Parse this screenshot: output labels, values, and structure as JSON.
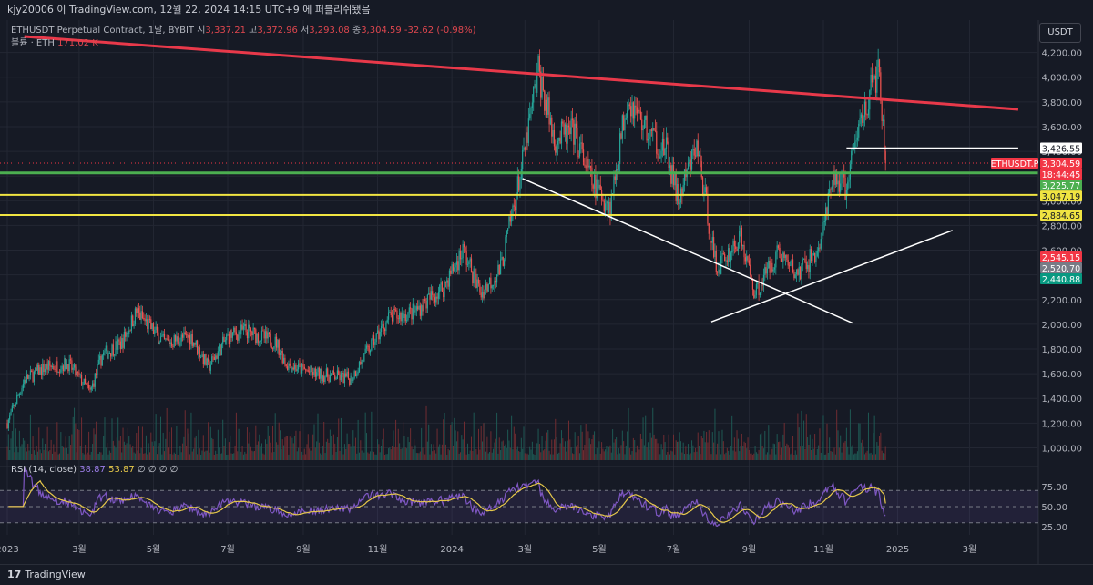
{
  "header": {
    "caption": "kjy20006 이 TradingView.com, 12월 22, 2024 14:15 UTC+9 에 퍼블리쉬됐음"
  },
  "legend": {
    "symbol": "ETHUSDT Perpetual Contract, 1날, BYBIT",
    "open_label": "시",
    "open": "3,337.21",
    "high_label": "고",
    "high": "3,372.96",
    "low_label": "저",
    "low": "3,293.08",
    "close_label": "종",
    "close": "3,304.59",
    "change": "-32.62 (-0.98%)",
    "volume_label": "볼륨 · ETH",
    "volume": "171.02 K"
  },
  "rsi_legend": {
    "label": "RSI (14, close)",
    "rsi": "38.87",
    "ma": "53.87",
    "extras": "∅ ∅ ∅ ∅"
  },
  "currency": "USDT",
  "footer": {
    "brand": "TradingView",
    "logo": "17"
  },
  "colors": {
    "background": "#161a25",
    "up": "#26a69a",
    "down": "#ef5350",
    "trend_red": "#e8394a",
    "green_line": "#4caf50",
    "yellow_line": "#f0e442",
    "white_line": "#ffffff",
    "rsi_purple": "#7e57c2",
    "rsi_yellow": "#e6c84a"
  },
  "chart_data": {
    "type": "candlestick",
    "timeframe": "1D",
    "y_axis_ticks": [
      1000,
      1200,
      1400,
      1600,
      1800,
      2000,
      2200,
      2400,
      2600,
      2800,
      3000,
      3200,
      3400,
      3600,
      3800,
      4000,
      4200
    ],
    "ylim": [
      900,
      4330
    ],
    "x_axis_ticks": [
      "2023",
      "3월",
      "5월",
      "7월",
      "9월",
      "11월",
      "2024",
      "3월",
      "5월",
      "7월",
      "9월",
      "11월",
      "2025",
      "3월"
    ],
    "x_tick_dates": [
      "2023-01-01",
      "2023-03-01",
      "2023-05-01",
      "2023-07-01",
      "2023-09-01",
      "2023-11-01",
      "2024-01-01",
      "2024-03-01",
      "2024-05-01",
      "2024-07-01",
      "2024-09-01",
      "2024-11-01",
      "2025-01-01",
      "2025-03-01"
    ],
    "price_path": [
      [
        "2023-01-01",
        1200
      ],
      [
        "2023-01-15",
        1550
      ],
      [
        "2023-02-01",
        1650
      ],
      [
        "2023-02-20",
        1680
      ],
      [
        "2023-03-10",
        1450
      ],
      [
        "2023-03-20",
        1750
      ],
      [
        "2023-04-05",
        1850
      ],
      [
        "2023-04-17",
        2100
      ],
      [
        "2023-05-10",
        1850
      ],
      [
        "2023-06-01",
        1900
      ],
      [
        "2023-06-15",
        1650
      ],
      [
        "2023-07-01",
        1900
      ],
      [
        "2023-07-15",
        1950
      ],
      [
        "2023-08-10",
        1850
      ],
      [
        "2023-08-18",
        1680
      ],
      [
        "2023-09-10",
        1600
      ],
      [
        "2023-10-10",
        1560
      ],
      [
        "2023-10-25",
        1800
      ],
      [
        "2023-11-10",
        2050
      ],
      [
        "2023-12-01",
        2100
      ],
      [
        "2023-12-25",
        2300
      ],
      [
        "2024-01-10",
        2600
      ],
      [
        "2024-01-25",
        2250
      ],
      [
        "2024-02-10",
        2450
      ],
      [
        "2024-02-28",
        3300
      ],
      [
        "2024-03-12",
        4050
      ],
      [
        "2024-03-25",
        3500
      ],
      [
        "2024-04-10",
        3550
      ],
      [
        "2024-04-25",
        3150
      ],
      [
        "2024-05-10",
        2950
      ],
      [
        "2024-05-24",
        3850
      ],
      [
        "2024-06-10",
        3550
      ],
      [
        "2024-06-25",
        3400
      ],
      [
        "2024-07-05",
        3000
      ],
      [
        "2024-07-20",
        3450
      ],
      [
        "2024-08-05",
        2450
      ],
      [
        "2024-08-25",
        2700
      ],
      [
        "2024-09-06",
        2250
      ],
      [
        "2024-09-25",
        2600
      ],
      [
        "2024-10-10",
        2400
      ],
      [
        "2024-10-28",
        2600
      ],
      [
        "2024-11-10",
        3200
      ],
      [
        "2024-11-20",
        3100
      ],
      [
        "2024-12-01",
        3650
      ],
      [
        "2024-12-16",
        4050
      ],
      [
        "2024-12-22",
        3304.59
      ]
    ],
    "price_labels": [
      {
        "text": "3,426.55",
        "value": 3426.55,
        "color": "#ffffff",
        "text_color": "#131722"
      },
      {
        "text": "ETHUSDT.P",
        "value": 3304.59,
        "color": "#f23645",
        "text_color": "#ffffff"
      },
      {
        "text": "3,304.59",
        "value": 3304.59,
        "color": "#f23645",
        "text_color": "#ffffff"
      },
      {
        "text": "18:44:45",
        "value": 3215,
        "color": "#f23645",
        "text_color": "#ffffff"
      },
      {
        "text": "3,225.77",
        "value": 3225.77,
        "color": "#4caf50",
        "text_color": "#ffffff"
      },
      {
        "text": "3,047.19",
        "value": 3047.19,
        "color": "#f0e442",
        "text_color": "#131722"
      },
      {
        "text": "2,884.65",
        "value": 2884.65,
        "color": "#f0e442",
        "text_color": "#131722"
      },
      {
        "text": "2,545.15",
        "value": 2545.15,
        "color": "#f23645",
        "text_color": "#ffffff"
      },
      {
        "text": "2,520.70",
        "value": 2520.7,
        "color": "#787b86",
        "text_color": "#ffffff"
      },
      {
        "text": "2,440.88",
        "value": 2440.88,
        "color": "#089981",
        "text_color": "#ffffff"
      }
    ],
    "horizontal_lines": [
      {
        "value": 3225.77,
        "color": "#4caf50"
      },
      {
        "value": 3047.19,
        "color": "#f0e442"
      },
      {
        "value": 2884.65,
        "color": "#f0e442"
      }
    ],
    "trendlines": [
      {
        "from": [
          "2023-01-15",
          4330
        ],
        "to": [
          "2025-04-10",
          3740
        ],
        "color": "#e8394a"
      },
      {
        "from": [
          "2024-02-28",
          3180
        ],
        "to": [
          "2024-11-25",
          2010
        ],
        "color": "#ffffff"
      },
      {
        "from": [
          "2024-08-01",
          2020
        ],
        "to": [
          "2025-02-15",
          2760
        ],
        "color": "#ffffff"
      },
      {
        "from": [
          "2024-11-20",
          3426.55
        ],
        "to": [
          "2025-04-10",
          3426.55
        ],
        "color": "#ffffff"
      }
    ],
    "rsi": {
      "period": 14,
      "ticks": [
        "75.00",
        "50.00",
        "25.00"
      ],
      "ylim": [
        15,
        95
      ],
      "bands": [
        70,
        50,
        30
      ],
      "last_rsi": 38.87,
      "last_ma": 53.87
    },
    "last_price": 3304.59
  }
}
